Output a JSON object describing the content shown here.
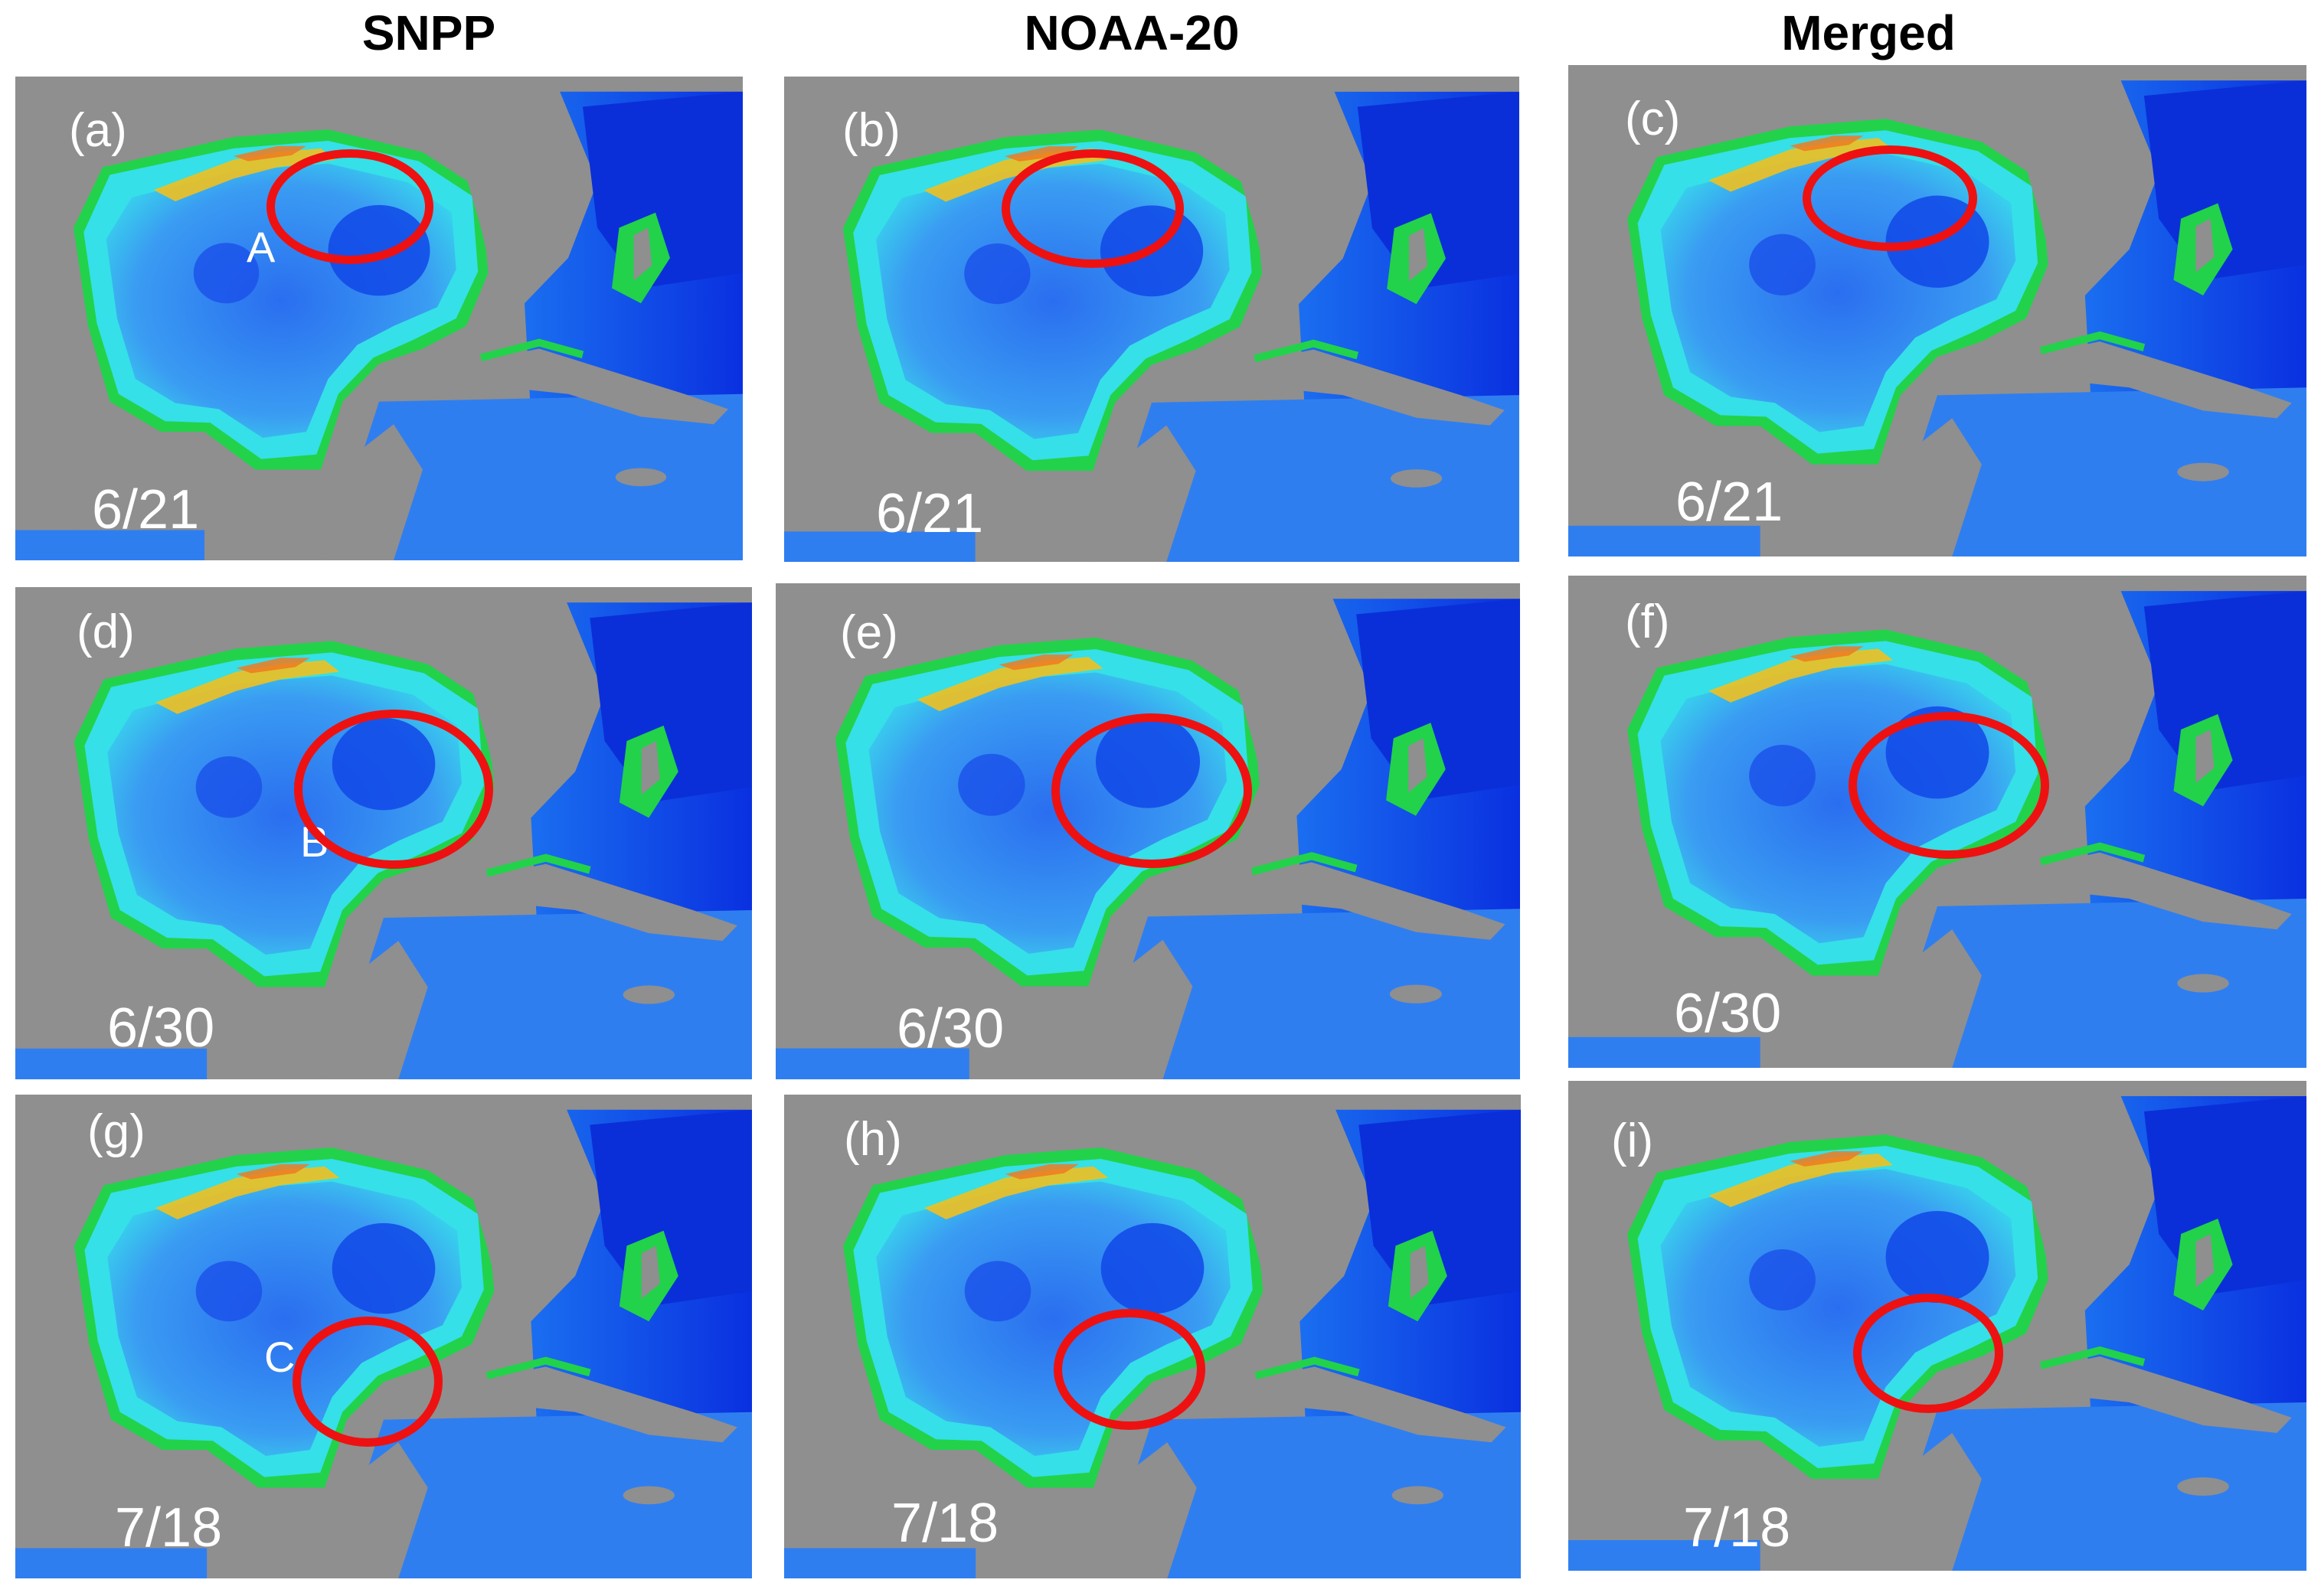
{
  "columns": [
    "SNPP",
    "NOAA-20",
    "Merged"
  ],
  "panels": [
    {
      "label": "(a)",
      "date": "6/21",
      "marker": "A"
    },
    {
      "label": "(b)",
      "date": "6/21",
      "marker": ""
    },
    {
      "label": "(c)",
      "date": "6/21",
      "marker": ""
    },
    {
      "label": "(d)",
      "date": "6/30",
      "marker": "B"
    },
    {
      "label": "(e)",
      "date": "6/30",
      "marker": ""
    },
    {
      "label": "(f)",
      "date": "6/30",
      "marker": ""
    },
    {
      "label": "(g)",
      "date": "7/18",
      "marker": "C"
    },
    {
      "label": "(h)",
      "date": "7/18",
      "marker": ""
    },
    {
      "label": "(i)",
      "date": "7/18",
      "marker": ""
    }
  ],
  "map": {
    "land_color": "#8f8f8f",
    "ocean_color": "#3a8cf0",
    "deep_water_color": "#0a3ee6",
    "shelf_color": "#35e0e8",
    "coastal_color": "#22d24a",
    "high_color": "#f0a020",
    "highlight_color": "#ee1111"
  }
}
